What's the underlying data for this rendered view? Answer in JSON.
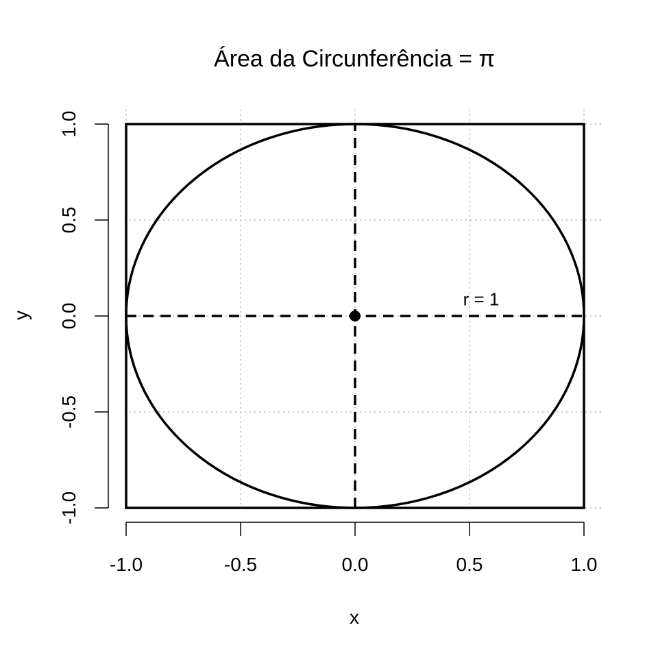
{
  "chart_data": {
    "type": "scatter",
    "title": "Área da Circunferência = π",
    "xlabel": "x",
    "ylabel": "y",
    "xlim": [
      -1.0,
      1.0
    ],
    "ylim": [
      -1.0,
      1.0
    ],
    "grid": true,
    "x_ticks": [
      -1.0,
      -0.5,
      0.0,
      0.5,
      1.0
    ],
    "y_ticks": [
      -1.0,
      -0.5,
      0.0,
      0.5,
      1.0
    ],
    "x_tick_labels": [
      "-1.0",
      "-0.5",
      "0.0",
      "0.5",
      "1.0"
    ],
    "y_tick_labels": [
      "-1.0",
      "-0.5",
      "0.0",
      "0.5",
      "1.0"
    ],
    "square": {
      "xmin": -1,
      "xmax": 1,
      "ymin": -1,
      "ymax": 1
    },
    "circle": {
      "cx": 0,
      "cy": 0,
      "r": 1
    },
    "center_point": {
      "x": 0,
      "y": 0
    },
    "dashed_lines": [
      {
        "x1": -1,
        "y1": 0,
        "x2": 1,
        "y2": 0
      },
      {
        "x1": 0,
        "y1": -1,
        "x2": 0,
        "y2": 1
      }
    ],
    "annotation": {
      "text": "r = 1",
      "x": 0.5,
      "y": 0.07
    }
  }
}
